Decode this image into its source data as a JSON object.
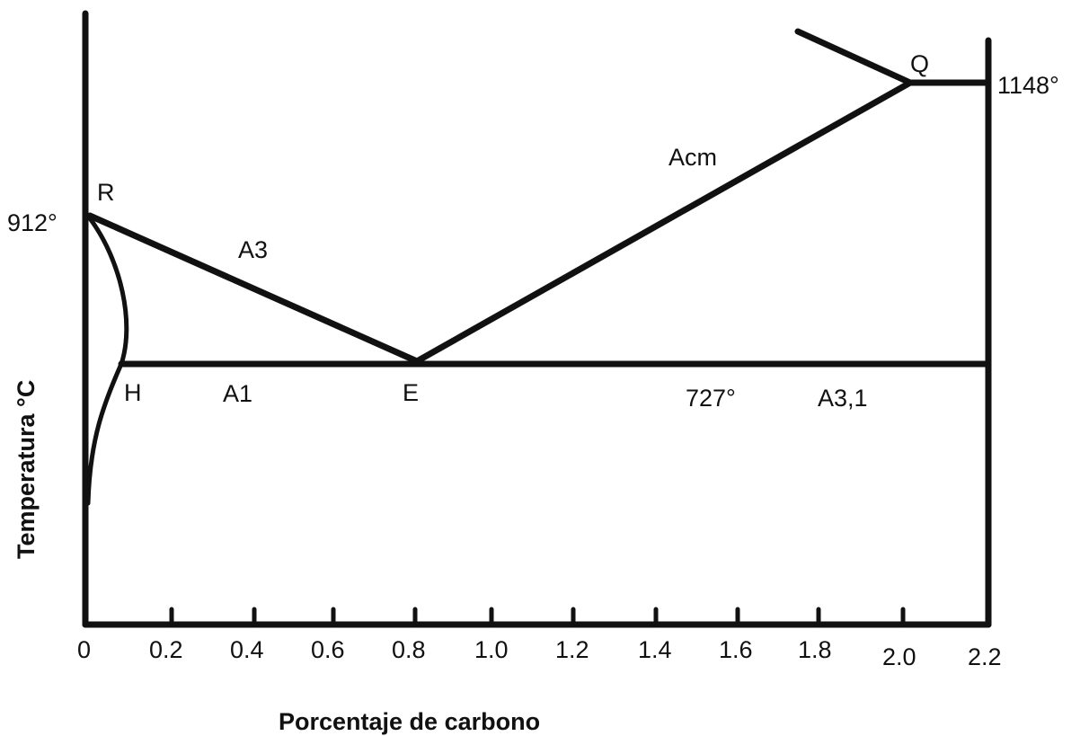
{
  "diagram": {
    "axis": {
      "x_title": "Porcentaje de carbono",
      "y_title": "Temperatura °C",
      "x_ticks": [
        "0",
        "0.2",
        "0.4",
        "0.6",
        "0.8",
        "1.0",
        "1.2",
        "1.4",
        "1.6",
        "1.8",
        "2.0",
        "2.2"
      ]
    },
    "points": {
      "R": "R",
      "H": "H",
      "E": "E",
      "Q": "Q"
    },
    "lines": {
      "A3": "A3",
      "Acm": "Acm",
      "A1": "A1",
      "A31": "A3,1"
    },
    "temperatures": {
      "t912": "912°",
      "t727": "727°",
      "t1148": "1148°"
    }
  }
}
